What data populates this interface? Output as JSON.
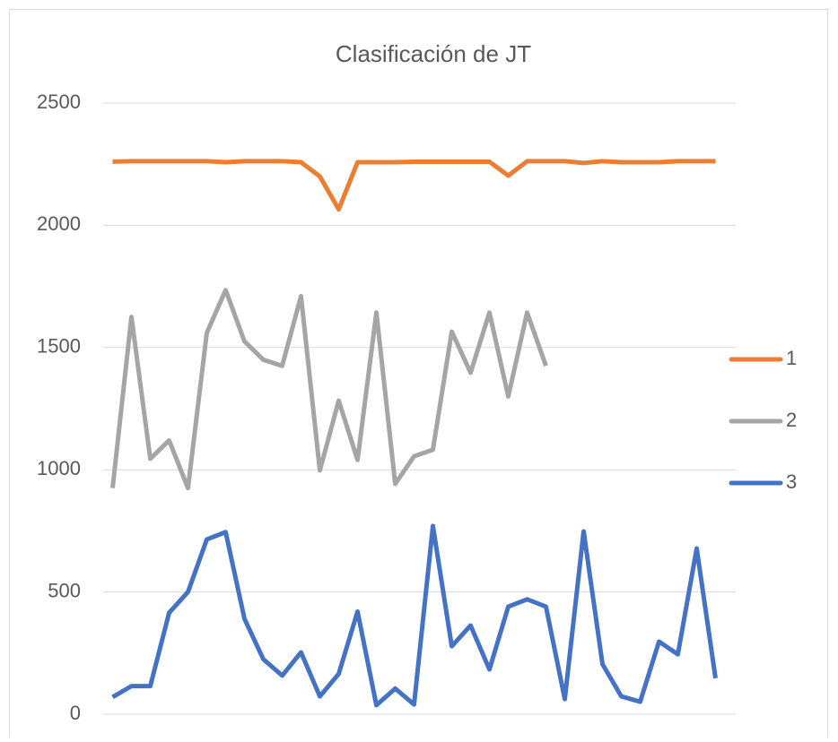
{
  "chart_data": {
    "type": "line",
    "title": "Clasificación de  JT",
    "categories": [
      null,
      null,
      null,
      null,
      null,
      null,
      null,
      null,
      null,
      null,
      null,
      null,
      null,
      null,
      null,
      null,
      null,
      null,
      null,
      null,
      null,
      null,
      null,
      null,
      null,
      null,
      null,
      null,
      null,
      null,
      null,
      null,
      null
    ],
    "series": [
      {
        "name": "1",
        "color": "#ed7d31",
        "values": [
          2260,
          2262,
          2262,
          2262,
          2262,
          2262,
          2258,
          2262,
          2262,
          2262,
          2258,
          2200,
          2065,
          2258,
          2258,
          2258,
          2260,
          2260,
          2260,
          2260,
          2260,
          2203,
          2262,
          2262,
          2262,
          2255,
          2262,
          2258,
          2258,
          2258,
          2262,
          2262,
          2262
        ]
      },
      {
        "name": "2",
        "color": "#a5a5a5",
        "values": [
          925,
          1625,
          1045,
          1120,
          925,
          1560,
          1735,
          1525,
          1450,
          1425,
          1710,
          997,
          1283,
          1040,
          1643,
          942,
          1055,
          1082,
          1565,
          1397,
          1643,
          1300,
          1643,
          1425,
          null,
          null,
          null,
          null,
          null,
          null,
          null,
          null,
          null
        ]
      },
      {
        "name": "3",
        "color": "#4472c4",
        "values": [
          70,
          115,
          115,
          415,
          500,
          715,
          745,
          390,
          225,
          158,
          253,
          73,
          165,
          420,
          37,
          105,
          40,
          770,
          278,
          363,
          183,
          440,
          470,
          440,
          62,
          748,
          205,
          73,
          51,
          297,
          245,
          678,
          147
        ]
      }
    ],
    "ylim": [
      0,
      2500
    ],
    "yticks": [
      0,
      500,
      1000,
      1500,
      2000,
      2500
    ],
    "grid": true,
    "legend": "right"
  }
}
